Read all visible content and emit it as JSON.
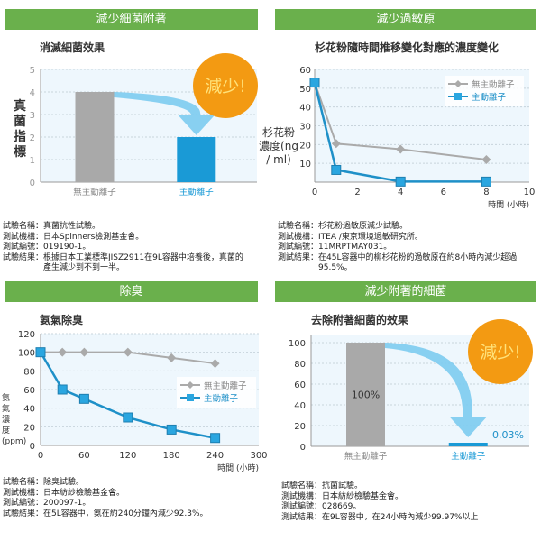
{
  "panels": [
    {
      "header": "減少細菌附著",
      "subtitle": "消滅細菌效果",
      "notes": [
        "試驗名稱：真菌抗性試驗。",
        "測試機構：日本Spinners檢測基金會。",
        "測試編號：019190-1。",
        "試驗結果：根據日本工業標準JISZ2911在9L容器中培養後，真菌的",
        "　　　　　產生減少到不到一半。"
      ]
    },
    {
      "header": "減少過敏原",
      "subtitle": "杉花粉隨時間推移變化對應的濃度變化",
      "notes": [
        "試驗名稱：杉花粉過敏原減少試驗。",
        "測試機構：ITEA /東京環境過敏研究所。",
        "測試編號：11MRPTMAY031。",
        "測試結果：在45L容器中的柳杉花粉的過敏原在約8小時內減少超過",
        "　　　　　95.5%。"
      ]
    },
    {
      "header": "除臭",
      "subtitle": "氨氣除臭",
      "notes": [
        "試驗名稱：除臭試驗。",
        "測試機構：日本紡紗檢驗基金會。",
        "測試編號：200097-1。",
        "試驗結果：在5L容器中，氨在約240分鐘內減少92.3%。"
      ]
    },
    {
      "header": "減少附著的細菌",
      "subtitle": "去除附著細菌的效果",
      "notes": [
        "試驗名稱：抗菌試驗。",
        "測試機構：日本紡紗檢驗基金會。",
        "測試編號：028669。",
        "測試結果：在9L容器中，在24小時內減少99.97%以上"
      ]
    }
  ],
  "colors": {
    "header": "#6ab04c",
    "gray": "#a9a9a9",
    "blue": "#1a9ad6",
    "line_blue": "#1e90c8",
    "badge": "#f39a12",
    "arrow": "#7ccbef",
    "plot_bg": "#eef7fd"
  },
  "chart_data": [
    {
      "type": "bar",
      "title": "消滅細菌效果",
      "ylabel": "真菌指標",
      "ylim": [
        0,
        5
      ],
      "yticks": [
        0,
        1,
        2,
        3,
        4,
        5
      ],
      "categories": [
        "無主動離子",
        "主動離子"
      ],
      "values": [
        4,
        2
      ],
      "badge": "減少!",
      "grid": true
    },
    {
      "type": "line",
      "title": "杉花粉隨時間推移變化對應的濃度變化",
      "ylabel": "杉花粉濃度(ng / ml)",
      "xlabel": "時間 (小時)",
      "xlim": [
        0,
        10
      ],
      "ylim": [
        0,
        60
      ],
      "xticks": [
        0,
        2,
        4,
        6,
        8,
        10
      ],
      "yticks": [
        10,
        20,
        30,
        40,
        50,
        60
      ],
      "legend": "top-right",
      "grid": true,
      "series": [
        {
          "name": "無主動離子",
          "marker": "diamond",
          "x": [
            0,
            1,
            4,
            8
          ],
          "y": [
            53,
            20.5,
            17.5,
            12
          ]
        },
        {
          "name": "主動離子",
          "marker": "square",
          "x": [
            0,
            1,
            4,
            8
          ],
          "y": [
            53,
            6.5,
            0.3,
            0.3
          ]
        }
      ]
    },
    {
      "type": "line",
      "title": "氨氣除臭",
      "ylabel": "氨氣濃度(ppm)",
      "xlabel": "時間 (小時)",
      "xlim": [
        0,
        300
      ],
      "ylim": [
        0,
        120
      ],
      "xticks": [
        0,
        60,
        120,
        180,
        240,
        300
      ],
      "yticks": [
        0,
        20,
        40,
        60,
        80,
        100,
        120
      ],
      "legend": "right",
      "grid": true,
      "series": [
        {
          "name": "無主動離子",
          "marker": "diamond",
          "x": [
            0,
            30,
            60,
            120,
            180,
            240
          ],
          "y": [
            100,
            100,
            100,
            100,
            94,
            88
          ]
        },
        {
          "name": "主動離子",
          "marker": "square",
          "x": [
            0,
            30,
            60,
            120,
            180,
            240
          ],
          "y": [
            100,
            60,
            50,
            30,
            17,
            8
          ]
        }
      ]
    },
    {
      "type": "bar",
      "title": "去除附著細菌的效果",
      "ylim": [
        0,
        100
      ],
      "yticks": [
        0,
        20,
        40,
        60,
        80,
        100
      ],
      "categories": [
        "無主動離子",
        "主動離子"
      ],
      "values": [
        100,
        0.03
      ],
      "data_labels": [
        "100%",
        "0.03%"
      ],
      "badge": "減少!",
      "grid": true
    }
  ]
}
